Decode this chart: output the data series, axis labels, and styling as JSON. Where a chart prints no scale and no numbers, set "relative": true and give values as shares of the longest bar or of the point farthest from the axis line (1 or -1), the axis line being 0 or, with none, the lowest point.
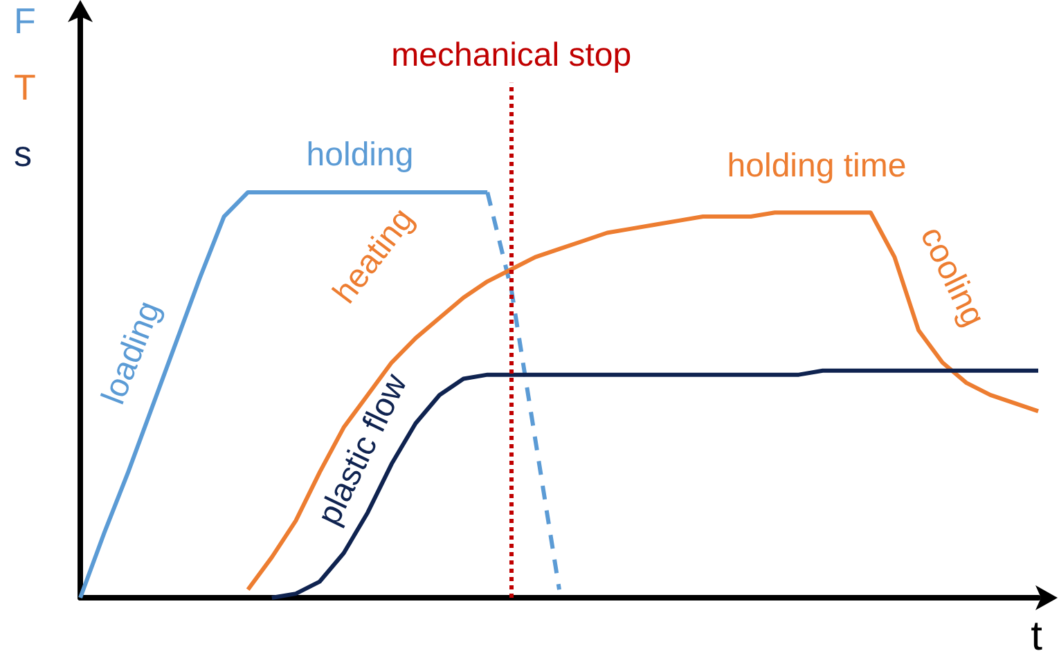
{
  "chart_data": {
    "type": "line",
    "relative": true,
    "xlabel": "t",
    "categories": [
      null,
      null,
      null,
      null,
      null,
      null,
      null,
      null,
      null,
      null,
      null,
      null,
      null,
      null,
      null,
      null,
      null,
      null,
      null,
      null,
      null,
      null,
      null,
      null,
      null,
      null,
      null,
      null,
      null,
      null,
      null,
      null,
      null,
      null,
      null,
      null,
      null,
      null,
      null,
      null,
      null
    ],
    "series": [
      {
        "name": "F",
        "color": "#5b9bd5",
        "line_style": "solid",
        "values": [
          0,
          0.16,
          0.31,
          0.47,
          0.63,
          0.79,
          0.94,
          1,
          1,
          1,
          1,
          1,
          1,
          1,
          1,
          1,
          1,
          1,
          null,
          null,
          null,
          null,
          null,
          null,
          null,
          null,
          null,
          null,
          null,
          null,
          null,
          null,
          null,
          null,
          null,
          null,
          null,
          null,
          null,
          null,
          null
        ]
      },
      {
        "color": "#5b9bd5",
        "line_style": "dashed",
        "values": [
          null,
          null,
          null,
          null,
          null,
          null,
          null,
          null,
          null,
          null,
          null,
          null,
          null,
          null,
          null,
          null,
          null,
          1,
          0.76,
          0.39,
          0.02,
          null,
          null,
          null,
          null,
          null,
          null,
          null,
          null,
          null,
          null,
          null,
          null,
          null,
          null,
          null,
          null,
          null,
          null,
          null,
          null
        ]
      },
      {
        "name": "T",
        "color": "#ed7d31",
        "line_style": "solid",
        "values": [
          null,
          null,
          null,
          null,
          null,
          null,
          null,
          0.02,
          0.1,
          0.19,
          0.31,
          0.42,
          0.5,
          0.58,
          0.64,
          0.69,
          0.74,
          0.78,
          0.81,
          0.84,
          0.86,
          0.88,
          0.9,
          0.91,
          0.92,
          0.93,
          0.94,
          0.94,
          0.94,
          0.95,
          0.95,
          0.95,
          0.95,
          0.95,
          0.84,
          0.66,
          0.58,
          0.53,
          0.5,
          0.48,
          0.46
        ]
      },
      {
        "name": "s",
        "color": "#0f2350",
        "line_style": "solid",
        "values": [
          null,
          null,
          null,
          null,
          null,
          null,
          null,
          null,
          0,
          0.01,
          0.04,
          0.11,
          0.21,
          0.33,
          0.43,
          0.5,
          0.54,
          0.55,
          0.55,
          0.55,
          0.55,
          0.55,
          0.55,
          0.55,
          0.55,
          0.55,
          0.55,
          0.55,
          0.55,
          0.55,
          0.55,
          0.56,
          0.56,
          0.56,
          0.56,
          0.56,
          0.56,
          0.56,
          0.56,
          0.56,
          0.56
        ]
      }
    ],
    "annotations": [
      "loading",
      "holding",
      "heating",
      "plastic flow",
      "holding time",
      "cooling",
      "mechanical stop"
    ],
    "marker": "none",
    "grid": false,
    "legend": false
  }
}
